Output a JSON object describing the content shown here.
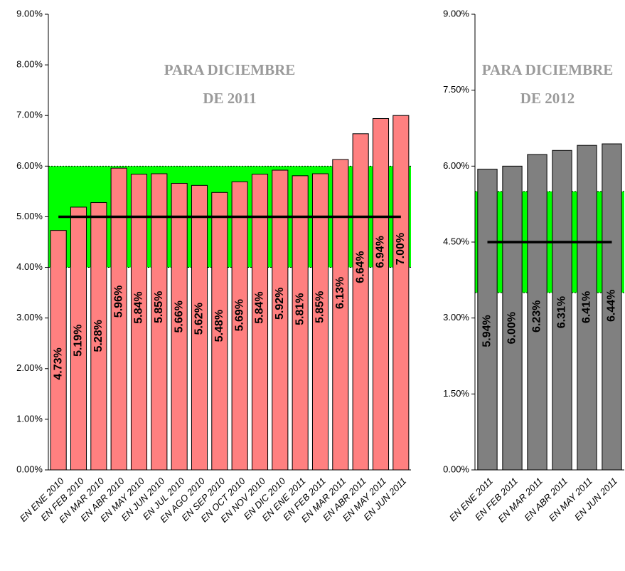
{
  "chart_data": [
    {
      "type": "bar",
      "title": [
        "PARA DICIEMBRE",
        "DE 2011"
      ],
      "categories": [
        "EN ENE 2010",
        "EN FEB 2010",
        "EN MAR 2010",
        "EN ABR 2010",
        "EN MAY 2010",
        "EN JUN 2010",
        "EN JUL 2010",
        "EN AGO 2010",
        "EN SEP 2010",
        "EN OCT 2010",
        "EN NOV 2010",
        "EN DIC 2010",
        "EN ENE 2011",
        "EN FEB 2011",
        "EN MAR 2011",
        "EN ABR 2011",
        "EN MAY 2011",
        "EN JUN 2011"
      ],
      "values": [
        4.73,
        5.19,
        5.28,
        5.96,
        5.84,
        5.85,
        5.66,
        5.62,
        5.48,
        5.69,
        5.84,
        5.92,
        5.81,
        5.85,
        6.13,
        6.64,
        6.94,
        7.0
      ],
      "value_labels": [
        "4.73%",
        "5.19%",
        "5.28%",
        "5.96%",
        "5.84%",
        "5.85%",
        "5.66%",
        "5.62%",
        "5.48%",
        "5.69%",
        "5.84%",
        "5.92%",
        "5.81%",
        "5.85%",
        "6.13%",
        "6.64%",
        "6.94%",
        "7.00%"
      ],
      "color": "#ff8080",
      "ylim": [
        0,
        9
      ],
      "yticks": [
        {
          "value": 0,
          "label": "0.00%"
        },
        {
          "value": 1,
          "label": "1.00%"
        },
        {
          "value": 2,
          "label": "2.00%"
        },
        {
          "value": 3,
          "label": "3.00%"
        },
        {
          "value": 4,
          "label": "4.00%"
        },
        {
          "value": 5,
          "label": "5.00%"
        },
        {
          "value": 6,
          "label": "6.00%"
        },
        {
          "value": 7,
          "label": "7.00%"
        },
        {
          "value": 8,
          "label": "8.00%"
        },
        {
          "value": 9,
          "label": "9.00%"
        }
      ],
      "target_band": [
        4,
        6
      ],
      "target_line": 5,
      "band_color": "#00ff00"
    },
    {
      "type": "bar",
      "title": [
        "PARA DICIEMBRE",
        "DE 2012"
      ],
      "categories": [
        "EN ENE 2011",
        "EN FEB 2011",
        "EN MAR 2011",
        "EN ABR 2011",
        "EN MAY 2011",
        "EN JUN 2011"
      ],
      "values": [
        5.94,
        6.0,
        6.23,
        6.31,
        6.41,
        6.44
      ],
      "value_labels": [
        "5.94%",
        "6.00%",
        "6.23%",
        "6.31%",
        "6.41%",
        "6.44%"
      ],
      "color": "#808080",
      "ylim": [
        0,
        9
      ],
      "yticks": [
        {
          "value": 0,
          "label": "0.00%"
        },
        {
          "value": 1.5,
          "label": "1.50%"
        },
        {
          "value": 3,
          "label": "3.00%"
        },
        {
          "value": 4.5,
          "label": "4.50%"
        },
        {
          "value": 6,
          "label": "6.00%"
        },
        {
          "value": 7.5,
          "label": "7.50%"
        },
        {
          "value": 9,
          "label": "9.00%"
        }
      ],
      "target_band": [
        3.5,
        5.5
      ],
      "target_line": 4.5,
      "band_color": "#00ff00"
    }
  ]
}
